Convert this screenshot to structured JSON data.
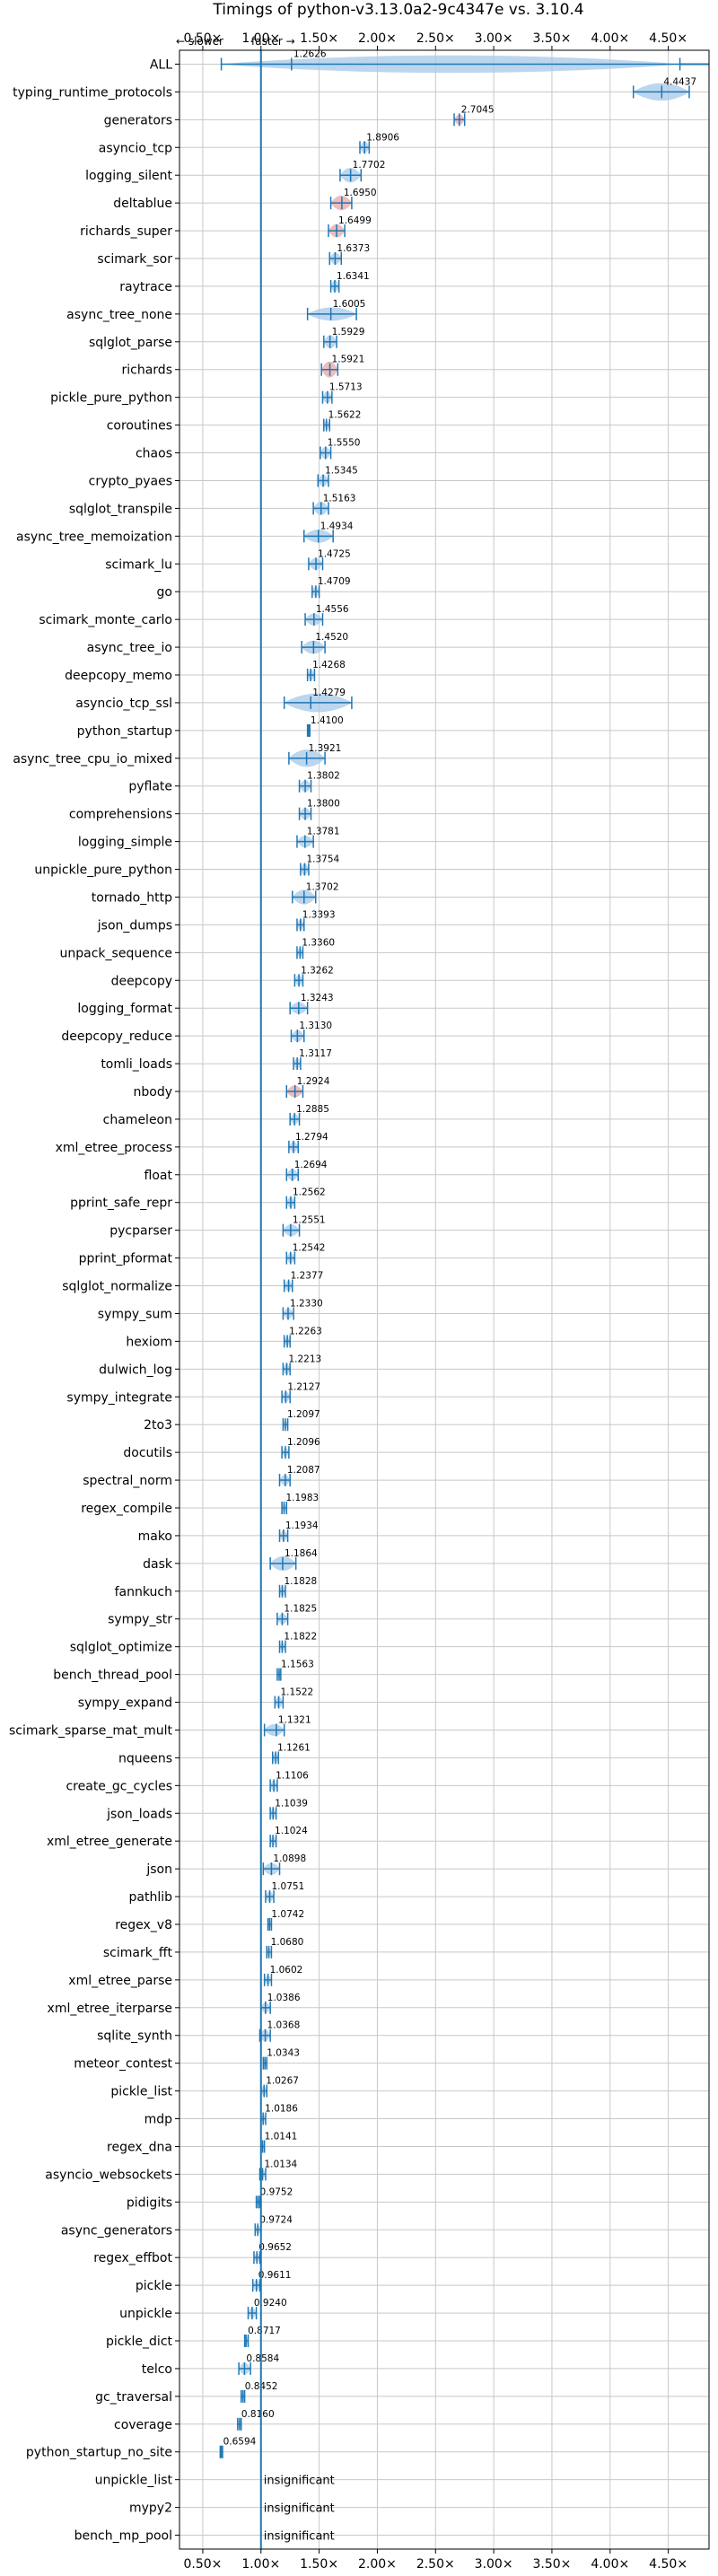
{
  "chart_data": {
    "type": "violin",
    "title": "Timings of python-v3.13.0a2-9c4347e vs. 3.10.4",
    "direction_labels": {
      "slower": "← slower",
      "faster": "faster →"
    },
    "xlim": [
      0.3,
      4.85
    ],
    "xticks": [
      0.5,
      1.0,
      1.5,
      2.0,
      2.5,
      3.0,
      3.5,
      4.0,
      4.5
    ],
    "xtick_labels": [
      "0.50×",
      "1.00×",
      "1.50×",
      "2.00×",
      "2.50×",
      "3.00×",
      "3.50×",
      "4.00×",
      "4.50×"
    ],
    "reference_line": 1.0,
    "grid": true,
    "insignificant_label": "insignificant",
    "benchmarks": [
      {
        "name": "ALL",
        "value": 1.2626,
        "label": "1.2626",
        "lo": 0.6594,
        "hi": 4.6,
        "color": "#a6c8e8",
        "width": 0.5
      },
      {
        "name": "typing_runtime_protocols",
        "value": 4.4437,
        "label": "4.4437",
        "lo": 4.2,
        "hi": 4.68,
        "color": "#a6c8e8",
        "width": 0.5
      },
      {
        "name": "generators",
        "value": 2.7045,
        "label": "2.7045",
        "lo": 2.66,
        "hi": 2.75,
        "color": "#e8a6a6",
        "width": 0.25
      },
      {
        "name": "asyncio_tcp",
        "value": 1.8906,
        "label": "1.8906",
        "lo": 1.85,
        "hi": 1.93,
        "color": "#a6c8e8",
        "width": 0.3
      },
      {
        "name": "logging_silent",
        "value": 1.7702,
        "label": "1.7702",
        "lo": 1.68,
        "hi": 1.86,
        "color": "#a6c8e8",
        "width": 0.4
      },
      {
        "name": "deltablue",
        "value": 1.695,
        "label": "1.6950",
        "lo": 1.6,
        "hi": 1.78,
        "color": "#e8a6a6",
        "width": 0.4
      },
      {
        "name": "richards_super",
        "value": 1.6499,
        "label": "1.6499",
        "lo": 1.58,
        "hi": 1.72,
        "color": "#e8a6a6",
        "width": 0.35
      },
      {
        "name": "scimark_sor",
        "value": 1.6373,
        "label": "1.6373",
        "lo": 1.59,
        "hi": 1.69,
        "color": "#a6c8e8",
        "width": 0.3
      },
      {
        "name": "raytrace",
        "value": 1.6341,
        "label": "1.6341",
        "lo": 1.6,
        "hi": 1.67,
        "color": "#a6c8e8",
        "width": 0.3
      },
      {
        "name": "async_tree_none",
        "value": 1.6005,
        "label": "1.6005",
        "lo": 1.4,
        "hi": 1.82,
        "color": "#a6c8e8",
        "width": 0.35
      },
      {
        "name": "sqlglot_parse",
        "value": 1.5929,
        "label": "1.5929",
        "lo": 1.54,
        "hi": 1.65,
        "color": "#a6c8e8",
        "width": 0.35
      },
      {
        "name": "richards",
        "value": 1.5921,
        "label": "1.5921",
        "lo": 1.52,
        "hi": 1.66,
        "color": "#e8a6a6",
        "width": 0.45
      },
      {
        "name": "pickle_pure_python",
        "value": 1.5713,
        "label": "1.5713",
        "lo": 1.53,
        "hi": 1.61,
        "color": "#a6c8e8",
        "width": 0.3
      },
      {
        "name": "coroutines",
        "value": 1.5622,
        "label": "1.5622",
        "lo": 1.54,
        "hi": 1.59,
        "color": "#a6c8e8",
        "width": 0.2
      },
      {
        "name": "chaos",
        "value": 1.555,
        "label": "1.5550",
        "lo": 1.51,
        "hi": 1.6,
        "color": "#a6c8e8",
        "width": 0.3
      },
      {
        "name": "crypto_pyaes",
        "value": 1.5345,
        "label": "1.5345",
        "lo": 1.49,
        "hi": 1.58,
        "color": "#a6c8e8",
        "width": 0.3
      },
      {
        "name": "sqlglot_transpile",
        "value": 1.5163,
        "label": "1.5163",
        "lo": 1.45,
        "hi": 1.58,
        "color": "#a6c8e8",
        "width": 0.35
      },
      {
        "name": "async_tree_memoization",
        "value": 1.4934,
        "label": "1.4934",
        "lo": 1.37,
        "hi": 1.62,
        "color": "#a6c8e8",
        "width": 0.35
      },
      {
        "name": "scimark_lu",
        "value": 1.4725,
        "label": "1.4725",
        "lo": 1.41,
        "hi": 1.53,
        "color": "#a6c8e8",
        "width": 0.3
      },
      {
        "name": "go",
        "value": 1.4709,
        "label": "1.4709",
        "lo": 1.44,
        "hi": 1.5,
        "color": "#a6c8e8",
        "width": 0.25
      },
      {
        "name": "scimark_monte_carlo",
        "value": 1.4556,
        "label": "1.4556",
        "lo": 1.38,
        "hi": 1.53,
        "color": "#a6c8e8",
        "width": 0.3
      },
      {
        "name": "async_tree_io",
        "value": 1.452,
        "label": "1.4520",
        "lo": 1.35,
        "hi": 1.55,
        "color": "#a6c8e8",
        "width": 0.35
      },
      {
        "name": "deepcopy_memo",
        "value": 1.4268,
        "label": "1.4268",
        "lo": 1.4,
        "hi": 1.46,
        "color": "#a6c8e8",
        "width": 0.25
      },
      {
        "name": "asyncio_tcp_ssl",
        "value": 1.4279,
        "label": "1.4279",
        "lo": 1.2,
        "hi": 1.78,
        "color": "#a6c8e8",
        "width": 0.55
      },
      {
        "name": "python_startup",
        "value": 1.41,
        "label": "1.4100",
        "lo": 1.4,
        "hi": 1.42,
        "color": "#a6c8e8",
        "width": 0.15
      },
      {
        "name": "async_tree_cpu_io_mixed",
        "value": 1.3921,
        "label": "1.3921",
        "lo": 1.24,
        "hi": 1.55,
        "color": "#a6c8e8",
        "width": 0.5
      },
      {
        "name": "pyflate",
        "value": 1.3802,
        "label": "1.3802",
        "lo": 1.33,
        "hi": 1.43,
        "color": "#a6c8e8",
        "width": 0.3
      },
      {
        "name": "comprehensions",
        "value": 1.38,
        "label": "1.3800",
        "lo": 1.33,
        "hi": 1.43,
        "color": "#a6c8e8",
        "width": 0.3
      },
      {
        "name": "logging_simple",
        "value": 1.3781,
        "label": "1.3781",
        "lo": 1.31,
        "hi": 1.45,
        "color": "#a6c8e8",
        "width": 0.3
      },
      {
        "name": "unpickle_pure_python",
        "value": 1.3754,
        "label": "1.3754",
        "lo": 1.34,
        "hi": 1.41,
        "color": "#a6c8e8",
        "width": 0.3
      },
      {
        "name": "tornado_http",
        "value": 1.3702,
        "label": "1.3702",
        "lo": 1.27,
        "hi": 1.47,
        "color": "#a6c8e8",
        "width": 0.4
      },
      {
        "name": "json_dumps",
        "value": 1.3393,
        "label": "1.3393",
        "lo": 1.31,
        "hi": 1.37,
        "color": "#a6c8e8",
        "width": 0.25
      },
      {
        "name": "unpack_sequence",
        "value": 1.336,
        "label": "1.3360",
        "lo": 1.31,
        "hi": 1.36,
        "color": "#a6c8e8",
        "width": 0.2
      },
      {
        "name": "deepcopy",
        "value": 1.3262,
        "label": "1.3262",
        "lo": 1.29,
        "hi": 1.36,
        "color": "#a6c8e8",
        "width": 0.25
      },
      {
        "name": "logging_format",
        "value": 1.3243,
        "label": "1.3243",
        "lo": 1.25,
        "hi": 1.4,
        "color": "#a6c8e8",
        "width": 0.3
      },
      {
        "name": "deepcopy_reduce",
        "value": 1.313,
        "label": "1.3130",
        "lo": 1.26,
        "hi": 1.37,
        "color": "#a6c8e8",
        "width": 0.3
      },
      {
        "name": "tomli_loads",
        "value": 1.3117,
        "label": "1.3117",
        "lo": 1.28,
        "hi": 1.34,
        "color": "#a6c8e8",
        "width": 0.25
      },
      {
        "name": "nbody",
        "value": 1.2924,
        "label": "1.2924",
        "lo": 1.22,
        "hi": 1.36,
        "color": "#e8a6a6",
        "width": 0.3
      },
      {
        "name": "chameleon",
        "value": 1.2885,
        "label": "1.2885",
        "lo": 1.25,
        "hi": 1.33,
        "color": "#a6c8e8",
        "width": 0.25
      },
      {
        "name": "xml_etree_process",
        "value": 1.2794,
        "label": "1.2794",
        "lo": 1.24,
        "hi": 1.32,
        "color": "#a6c8e8",
        "width": 0.25
      },
      {
        "name": "float",
        "value": 1.2694,
        "label": "1.2694",
        "lo": 1.22,
        "hi": 1.32,
        "color": "#a6c8e8",
        "width": 0.3
      },
      {
        "name": "pprint_safe_repr",
        "value": 1.2562,
        "label": "1.2562",
        "lo": 1.22,
        "hi": 1.29,
        "color": "#a6c8e8",
        "width": 0.25
      },
      {
        "name": "pycparser",
        "value": 1.2551,
        "label": "1.2551",
        "lo": 1.19,
        "hi": 1.33,
        "color": "#a6c8e8",
        "width": 0.3
      },
      {
        "name": "pprint_pformat",
        "value": 1.2542,
        "label": "1.2542",
        "lo": 1.22,
        "hi": 1.29,
        "color": "#a6c8e8",
        "width": 0.25
      },
      {
        "name": "sqlglot_normalize",
        "value": 1.2377,
        "label": "1.2377",
        "lo": 1.2,
        "hi": 1.27,
        "color": "#a6c8e8",
        "width": 0.25
      },
      {
        "name": "sympy_sum",
        "value": 1.233,
        "label": "1.2330",
        "lo": 1.19,
        "hi": 1.28,
        "color": "#a6c8e8",
        "width": 0.25
      },
      {
        "name": "hexiom",
        "value": 1.2263,
        "label": "1.2263",
        "lo": 1.2,
        "hi": 1.25,
        "color": "#a6c8e8",
        "width": 0.2
      },
      {
        "name": "dulwich_log",
        "value": 1.2213,
        "label": "1.2213",
        "lo": 1.19,
        "hi": 1.25,
        "color": "#a6c8e8",
        "width": 0.25
      },
      {
        "name": "sympy_integrate",
        "value": 1.2127,
        "label": "1.2127",
        "lo": 1.18,
        "hi": 1.25,
        "color": "#a6c8e8",
        "width": 0.25
      },
      {
        "name": "2to3",
        "value": 1.2097,
        "label": "1.2097",
        "lo": 1.19,
        "hi": 1.23,
        "color": "#a6c8e8",
        "width": 0.2
      },
      {
        "name": "docutils",
        "value": 1.2096,
        "label": "1.2096",
        "lo": 1.18,
        "hi": 1.24,
        "color": "#a6c8e8",
        "width": 0.2
      },
      {
        "name": "spectral_norm",
        "value": 1.2087,
        "label": "1.2087",
        "lo": 1.16,
        "hi": 1.25,
        "color": "#a6c8e8",
        "width": 0.25
      },
      {
        "name": "regex_compile",
        "value": 1.1983,
        "label": "1.1983",
        "lo": 1.18,
        "hi": 1.22,
        "color": "#a6c8e8",
        "width": 0.2
      },
      {
        "name": "mako",
        "value": 1.1934,
        "label": "1.1934",
        "lo": 1.16,
        "hi": 1.23,
        "color": "#a6c8e8",
        "width": 0.25
      },
      {
        "name": "dask",
        "value": 1.1864,
        "label": "1.1864",
        "lo": 1.08,
        "hi": 1.3,
        "color": "#a6c8e8",
        "width": 0.4
      },
      {
        "name": "fannkuch",
        "value": 1.1828,
        "label": "1.1828",
        "lo": 1.16,
        "hi": 1.21,
        "color": "#a6c8e8",
        "width": 0.25
      },
      {
        "name": "sympy_str",
        "value": 1.1825,
        "label": "1.1825",
        "lo": 1.14,
        "hi": 1.23,
        "color": "#a6c8e8",
        "width": 0.25
      },
      {
        "name": "sqlglot_optimize",
        "value": 1.1822,
        "label": "1.1822",
        "lo": 1.16,
        "hi": 1.21,
        "color": "#a6c8e8",
        "width": 0.2
      },
      {
        "name": "bench_thread_pool",
        "value": 1.1563,
        "label": "1.1563",
        "lo": 1.14,
        "hi": 1.17,
        "color": "#a6c8e8",
        "width": 0.15
      },
      {
        "name": "sympy_expand",
        "value": 1.1522,
        "label": "1.1522",
        "lo": 1.12,
        "hi": 1.19,
        "color": "#a6c8e8",
        "width": 0.25
      },
      {
        "name": "scimark_sparse_mat_mult",
        "value": 1.1321,
        "label": "1.1321",
        "lo": 1.03,
        "hi": 1.2,
        "color": "#a6c8e8",
        "width": 0.3
      },
      {
        "name": "nqueens",
        "value": 1.1261,
        "label": "1.1261",
        "lo": 1.1,
        "hi": 1.15,
        "color": "#a6c8e8",
        "width": 0.25
      },
      {
        "name": "create_gc_cycles",
        "value": 1.1106,
        "label": "1.1106",
        "lo": 1.08,
        "hi": 1.14,
        "color": "#a6c8e8",
        "width": 0.25
      },
      {
        "name": "json_loads",
        "value": 1.1039,
        "label": "1.1039",
        "lo": 1.08,
        "hi": 1.13,
        "color": "#a6c8e8",
        "width": 0.25
      },
      {
        "name": "xml_etree_generate",
        "value": 1.1024,
        "label": "1.1024",
        "lo": 1.08,
        "hi": 1.13,
        "color": "#a6c8e8",
        "width": 0.2
      },
      {
        "name": "json",
        "value": 1.0898,
        "label": "1.0898",
        "lo": 1.02,
        "hi": 1.16,
        "color": "#a6c8e8",
        "width": 0.3
      },
      {
        "name": "pathlib",
        "value": 1.0751,
        "label": "1.0751",
        "lo": 1.04,
        "hi": 1.11,
        "color": "#a6c8e8",
        "width": 0.25
      },
      {
        "name": "regex_v8",
        "value": 1.0742,
        "label": "1.0742",
        "lo": 1.06,
        "hi": 1.09,
        "color": "#a6c8e8",
        "width": 0.15
      },
      {
        "name": "scimark_fft",
        "value": 1.068,
        "label": "1.0680",
        "lo": 1.05,
        "hi": 1.09,
        "color": "#a6c8e8",
        "width": 0.2
      },
      {
        "name": "xml_etree_parse",
        "value": 1.0602,
        "label": "1.0602",
        "lo": 1.03,
        "hi": 1.09,
        "color": "#a6c8e8",
        "width": 0.2
      },
      {
        "name": "xml_etree_iterparse",
        "value": 1.0386,
        "label": "1.0386",
        "lo": 1.0,
        "hi": 1.08,
        "color": "#a6c8e8",
        "width": 0.25
      },
      {
        "name": "sqlite_synth",
        "value": 1.0368,
        "label": "1.0368",
        "lo": 0.99,
        "hi": 1.08,
        "color": "#a6c8e8",
        "width": 0.3
      },
      {
        "name": "meteor_contest",
        "value": 1.0343,
        "label": "1.0343",
        "lo": 1.02,
        "hi": 1.05,
        "color": "#a6c8e8",
        "width": 0.15
      },
      {
        "name": "pickle_list",
        "value": 1.0267,
        "label": "1.0267",
        "lo": 1.0,
        "hi": 1.05,
        "color": "#a6c8e8",
        "width": 0.25
      },
      {
        "name": "mdp",
        "value": 1.0186,
        "label": "1.0186",
        "lo": 1.0,
        "hi": 1.04,
        "color": "#a6c8e8",
        "width": 0.2
      },
      {
        "name": "regex_dna",
        "value": 1.0141,
        "label": "1.0141",
        "lo": 1.0,
        "hi": 1.03,
        "color": "#a6c8e8",
        "width": 0.15
      },
      {
        "name": "asyncio_websockets",
        "value": 1.0134,
        "label": "1.0134",
        "lo": 0.99,
        "hi": 1.04,
        "color": "#a6c8e8",
        "width": 0.2
      },
      {
        "name": "pidigits",
        "value": 0.9752,
        "label": "0.9752",
        "lo": 0.96,
        "hi": 0.99,
        "color": "#a6c8e8",
        "width": 0.15
      },
      {
        "name": "async_generators",
        "value": 0.9724,
        "label": "0.9724",
        "lo": 0.95,
        "hi": 1.0,
        "color": "#a6c8e8",
        "width": 0.2
      },
      {
        "name": "regex_effbot",
        "value": 0.9652,
        "label": "0.9652",
        "lo": 0.94,
        "hi": 0.99,
        "color": "#a6c8e8",
        "width": 0.2
      },
      {
        "name": "pickle",
        "value": 0.9611,
        "label": "0.9611",
        "lo": 0.93,
        "hi": 0.99,
        "color": "#a6c8e8",
        "width": 0.25
      },
      {
        "name": "unpickle",
        "value": 0.924,
        "label": "0.9240",
        "lo": 0.89,
        "hi": 0.96,
        "color": "#a6c8e8",
        "width": 0.25
      },
      {
        "name": "pickle_dict",
        "value": 0.8717,
        "label": "0.8717",
        "lo": 0.86,
        "hi": 0.89,
        "color": "#a6c8e8",
        "width": 0.2
      },
      {
        "name": "telco",
        "value": 0.8584,
        "label": "0.8584",
        "lo": 0.81,
        "hi": 0.91,
        "color": "#a6c8e8",
        "width": 0.3
      },
      {
        "name": "gc_traversal",
        "value": 0.8452,
        "label": "0.8452",
        "lo": 0.83,
        "hi": 0.86,
        "color": "#a6c8e8",
        "width": 0.15
      },
      {
        "name": "coverage",
        "value": 0.816,
        "label": "0.8160",
        "lo": 0.8,
        "hi": 0.83,
        "color": "#a6c8e8",
        "width": 0.2
      },
      {
        "name": "python_startup_no_site",
        "value": 0.6594,
        "label": "0.6594",
        "lo": 0.65,
        "hi": 0.67,
        "color": "#a6c8e8",
        "width": 0.15
      },
      {
        "name": "unpickle_list",
        "value": null,
        "label": "insignificant"
      },
      {
        "name": "mypy2",
        "value": null,
        "label": "insignificant"
      },
      {
        "name": "bench_mp_pool",
        "value": null,
        "label": "insignificant"
      }
    ]
  }
}
